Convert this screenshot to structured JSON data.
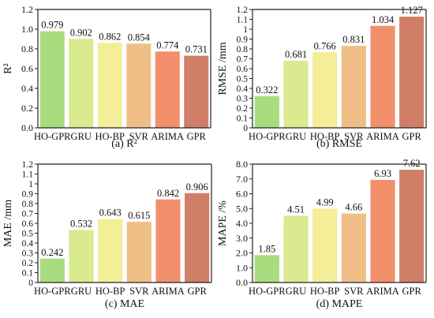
{
  "chart_data": [
    {
      "type": "bar",
      "caption": "(a) R²",
      "ylabel": "R²",
      "ylim": [
        0,
        1.2
      ],
      "yticks": [
        "0.0",
        "0.2",
        "0.4",
        "0.6",
        "0.8",
        "1.0",
        "1.2"
      ],
      "categories": [
        "HO-GPR",
        "GRU",
        "HO-BP",
        "SVR",
        "ARIMA",
        "GPR"
      ],
      "values": [
        0.979,
        0.902,
        0.862,
        0.854,
        0.774,
        0.731
      ],
      "value_labels": [
        "0.979",
        "0.902",
        "0.862",
        "0.854",
        "0.774",
        "0.731"
      ]
    },
    {
      "type": "bar",
      "caption": "(b) RMSE",
      "ylabel": "RMSE /mm",
      "ylim": [
        0,
        1.2
      ],
      "yticks": [
        "0",
        "0.1",
        "0.2",
        "0.3",
        "0.4",
        "0.5",
        "0.6",
        "0.7",
        "0.8",
        "0.9",
        "1",
        "1.1",
        "1.2"
      ],
      "categories": [
        "HO-GPR",
        "GRU",
        "HO-BP",
        "SVR",
        "ARIMA",
        "GPR"
      ],
      "values": [
        0.322,
        0.681,
        0.766,
        0.831,
        1.034,
        1.127
      ],
      "value_labels": [
        "0.322",
        "0.681",
        "0.766",
        "0.831",
        "1.034",
        "1.127"
      ]
    },
    {
      "type": "bar",
      "caption": "(c) MAE",
      "ylabel": "MAE /mm",
      "ylim": [
        0,
        1.2
      ],
      "yticks": [
        "0",
        "0.1",
        "0.2",
        "0.3",
        "0.4",
        "0.5",
        "0.6",
        "0.7",
        "0.8",
        "0.9",
        "1",
        "1.1",
        "1.2"
      ],
      "categories": [
        "HO-GPR",
        "GRU",
        "HO-BP",
        "SVR",
        "ARIMA",
        "GPR"
      ],
      "values": [
        0.242,
        0.532,
        0.643,
        0.615,
        0.842,
        0.906
      ],
      "value_labels": [
        "0.242",
        "0.532",
        "0.643",
        "0.615",
        "0.842",
        "0.906"
      ]
    },
    {
      "type": "bar",
      "caption": "(d) MAPE",
      "ylabel": "MAPE /%",
      "ylim": [
        0,
        8
      ],
      "yticks": [
        "0.0",
        "1.0",
        "2.0",
        "3.0",
        "4.0",
        "5.0",
        "6.0",
        "7.0",
        "8.0"
      ],
      "categories": [
        "HO-GPR",
        "GRU",
        "HO-BP",
        "SVR",
        "ARIMA",
        "GPR"
      ],
      "values": [
        1.85,
        4.51,
        4.99,
        4.66,
        6.93,
        7.62
      ],
      "value_labels": [
        "1.85",
        "4.51",
        "4.99",
        "4.66",
        "6.93",
        "7.62"
      ]
    }
  ],
  "bar_colors": [
    "#a9dc7e",
    "#d9ea8f",
    "#f4ee98",
    "#f0bf88",
    "#f2906c",
    "#d07e68"
  ]
}
